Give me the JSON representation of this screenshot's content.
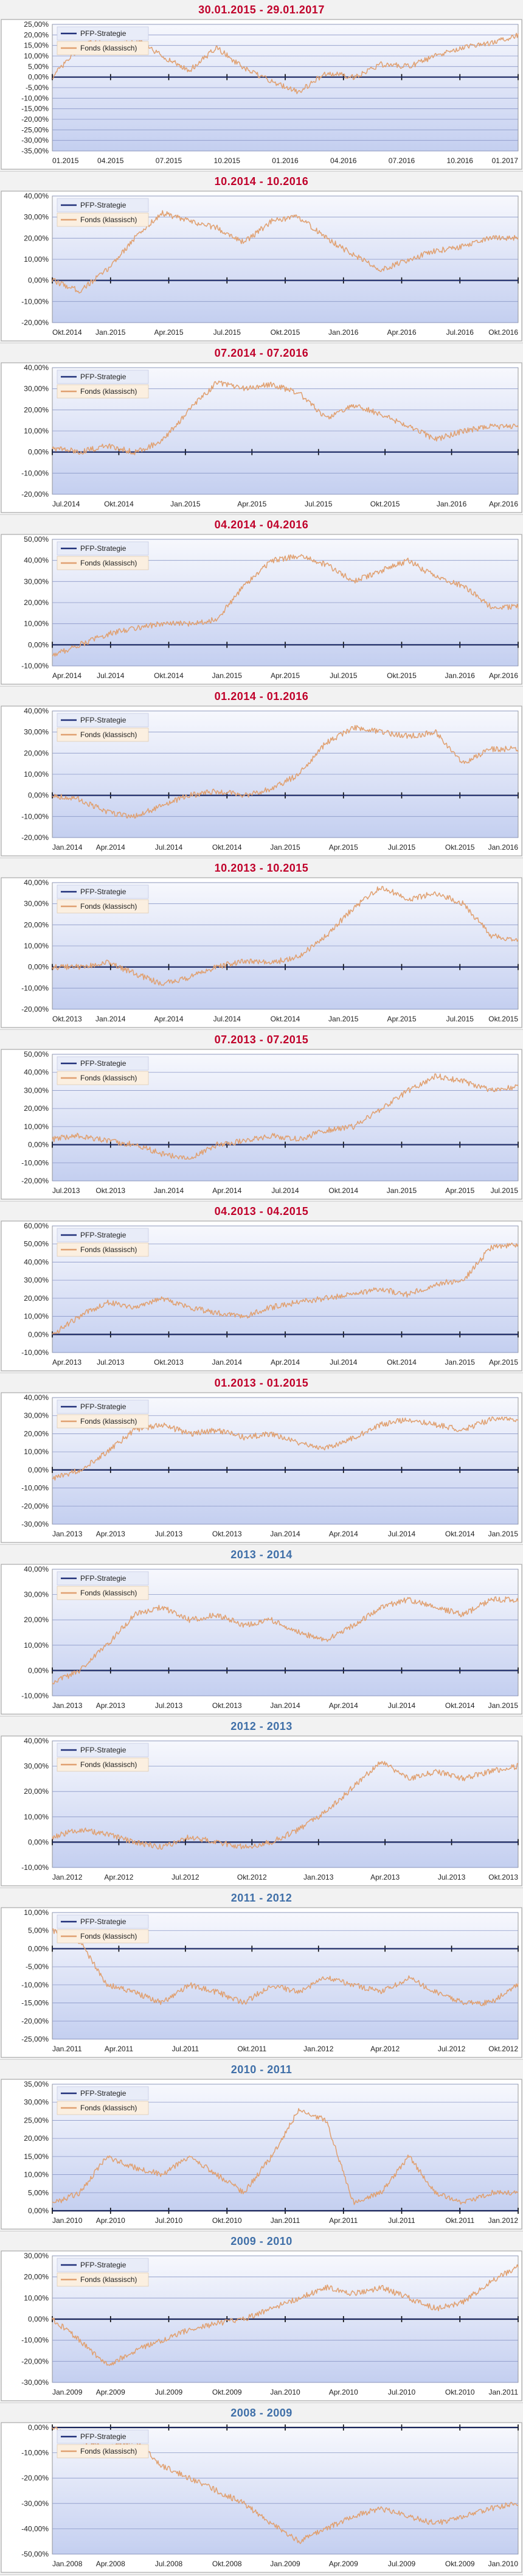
{
  "colors": {
    "title_red": "#c0002a",
    "title_blue": "#3f6fa8",
    "plot_bg_top": "#f7f8fd",
    "plot_bg_bottom": "#c4cff0",
    "gridline": "#8a97c8",
    "zero_axis": "#000000",
    "series_strategy": "#20307a",
    "series_fonds": "#e0a070"
  },
  "chart_data": [
    {
      "type": "line",
      "title": "30.01.2015 - 29.01.2017",
      "title_color": "red",
      "yticks": [
        "25,00%",
        "20,00%",
        "15,00%",
        "10,00%",
        "5,00%",
        "0,00%",
        "-5,00%",
        "-10,00%",
        "-15,00%",
        "-20,00%",
        "-25,00%",
        "-30,00%",
        "-35,00%"
      ],
      "yvalues": [
        25,
        20,
        15,
        10,
        5,
        0,
        -5,
        -10,
        -15,
        -20,
        -25,
        -30,
        -35
      ],
      "ylim": [
        -35,
        25
      ],
      "xticks": [
        "01.2015",
        "04.2015",
        "07.2015",
        "10.2015",
        "01.2016",
        "04.2016",
        "07.2016",
        "10.2016",
        "01.2017"
      ],
      "series": [
        {
          "name": "PFP-Strategie",
          "values": [
            0,
            0,
            0,
            0,
            0,
            0,
            0,
            0,
            0,
            0
          ]
        },
        {
          "name": "Fonds (klassisch)",
          "values": [
            0,
            14,
            20,
            18,
            10,
            3,
            14,
            4,
            -2,
            -7,
            2,
            0,
            6,
            5,
            10,
            14,
            16,
            20
          ]
        }
      ]
    },
    {
      "type": "line",
      "title": "10.2014 - 10.2016",
      "title_color": "red",
      "yticks": [
        "40,00%",
        "30,00%",
        "20,00%",
        "10,00%",
        "0,00%",
        "-10,00%",
        "-20,00%"
      ],
      "yvalues": [
        40,
        30,
        20,
        10,
        0,
        -10,
        -20
      ],
      "ylim": [
        -20,
        40
      ],
      "xticks": [
        "Okt.2014",
        "Jan.2015",
        "Apr.2015",
        "Jul.2015",
        "Okt.2015",
        "Jan.2016",
        "Apr.2016",
        "Jul.2016",
        "Okt.2016"
      ],
      "series": [
        {
          "name": "PFP-Strategie",
          "values": [
            0,
            0,
            0,
            0,
            0,
            0,
            0,
            0,
            0,
            0
          ]
        },
        {
          "name": "Fonds (klassisch)",
          "values": [
            0,
            -5,
            5,
            20,
            32,
            28,
            25,
            18,
            28,
            30,
            20,
            12,
            5,
            10,
            14,
            16,
            20,
            20
          ]
        }
      ]
    },
    {
      "type": "line",
      "title": "07.2014 - 07.2016",
      "title_color": "red",
      "yticks": [
        "40,00%",
        "30,00%",
        "20,00%",
        "10,00%",
        "0,00%",
        "-10,00%",
        "-20,00%"
      ],
      "yvalues": [
        40,
        30,
        20,
        10,
        0,
        -10,
        -20
      ],
      "ylim": [
        -20,
        40
      ],
      "xticks": [
        "Jul.2014",
        "Okt.2014",
        "Jan.2015",
        "Apr.2015",
        "Jul.2015",
        "Okt.2015",
        "Jan.2016",
        "Apr.2016"
      ],
      "series": [
        {
          "name": "PFP-Strategie",
          "values": [
            0,
            0,
            0,
            0,
            0,
            0,
            0,
            0,
            0,
            0
          ]
        },
        {
          "name": "Fonds (klassisch)",
          "values": [
            2,
            0,
            3,
            0,
            5,
            20,
            33,
            30,
            32,
            28,
            16,
            22,
            18,
            12,
            6,
            10,
            12,
            12
          ]
        }
      ]
    },
    {
      "type": "line",
      "title": "04.2014 - 04.2016",
      "title_color": "red",
      "yticks": [
        "50,00%",
        "40,00%",
        "30,00%",
        "20,00%",
        "10,00%",
        "0,00%",
        "-10,00%"
      ],
      "yvalues": [
        50,
        40,
        30,
        20,
        10,
        0,
        -10
      ],
      "ylim": [
        -10,
        50
      ],
      "xticks": [
        "Apr.2014",
        "Jul.2014",
        "Okt.2014",
        "Jan.2015",
        "Apr.2015",
        "Jul.2015",
        "Okt.2015",
        "Jan.2016",
        "Apr.2016"
      ],
      "series": [
        {
          "name": "PFP-Strategie",
          "values": [
            0,
            0,
            0,
            0,
            0,
            0,
            0,
            0,
            0,
            0
          ]
        },
        {
          "name": "Fonds (klassisch)",
          "values": [
            -5,
            0,
            5,
            8,
            10,
            10,
            12,
            28,
            40,
            42,
            38,
            30,
            35,
            40,
            32,
            28,
            18,
            18
          ]
        }
      ]
    },
    {
      "type": "line",
      "title": "01.2014 - 01.2016",
      "title_color": "red",
      "yticks": [
        "40,00%",
        "30,00%",
        "20,00%",
        "10,00%",
        "0,00%",
        "-10,00%",
        "-20,00%"
      ],
      "yvalues": [
        40,
        30,
        20,
        10,
        0,
        -10,
        -20
      ],
      "ylim": [
        -20,
        40
      ],
      "xticks": [
        "Jan.2014",
        "Apr.2014",
        "Jul.2014",
        "Okt.2014",
        "Jan.2015",
        "Apr.2015",
        "Jul.2015",
        "Okt.2015",
        "Jan.2016"
      ],
      "series": [
        {
          "name": "PFP-Strategie",
          "values": [
            0,
            0,
            0,
            0,
            0,
            0,
            0,
            0,
            0,
            0
          ]
        },
        {
          "name": "Fonds (klassisch)",
          "values": [
            0,
            -2,
            -8,
            -10,
            -5,
            0,
            2,
            0,
            3,
            10,
            25,
            32,
            30,
            28,
            30,
            15,
            22,
            22
          ]
        }
      ]
    },
    {
      "type": "line",
      "title": "10.2013 - 10.2015",
      "title_color": "red",
      "yticks": [
        "40,00%",
        "30,00%",
        "20,00%",
        "10,00%",
        "0,00%",
        "-10,00%",
        "-20,00%"
      ],
      "yvalues": [
        40,
        30,
        20,
        10,
        0,
        -10,
        -20
      ],
      "ylim": [
        -20,
        40
      ],
      "xticks": [
        "Okt.2013",
        "Jan.2014",
        "Apr.2014",
        "Jul.2014",
        "Okt.2014",
        "Jan.2015",
        "Apr.2015",
        "Jul.2015",
        "Okt.2015"
      ],
      "series": [
        {
          "name": "PFP-Strategie",
          "values": [
            0,
            0,
            0,
            0,
            0,
            0,
            0,
            0,
            0,
            0
          ]
        },
        {
          "name": "Fonds (klassisch)",
          "values": [
            0,
            0,
            2,
            -3,
            -8,
            -5,
            0,
            3,
            2,
            5,
            15,
            28,
            38,
            32,
            35,
            30,
            15,
            12
          ]
        }
      ]
    },
    {
      "type": "line",
      "title": "07.2013 - 07.2015",
      "title_color": "red",
      "yticks": [
        "50,00%",
        "40,00%",
        "30,00%",
        "20,00%",
        "10,00%",
        "0,00%",
        "-10,00%",
        "-20,00%"
      ],
      "yvalues": [
        50,
        40,
        30,
        20,
        10,
        0,
        -10,
        -20
      ],
      "ylim": [
        -20,
        50
      ],
      "xticks": [
        "Jul.2013",
        "Okt.2013",
        "Jan.2014",
        "Apr.2014",
        "Jul.2014",
        "Okt.2014",
        "Jan.2015",
        "Apr.2015",
        "Jul.2015"
      ],
      "series": [
        {
          "name": "PFP-Strategie",
          "values": [
            0,
            0,
            0,
            0,
            0,
            0,
            0,
            0,
            0,
            0
          ]
        },
        {
          "name": "Fonds (klassisch)",
          "values": [
            3,
            5,
            2,
            0,
            -5,
            -8,
            0,
            2,
            5,
            3,
            8,
            10,
            20,
            30,
            38,
            35,
            30,
            32
          ]
        }
      ]
    },
    {
      "type": "line",
      "title": "04.2013 - 04.2015",
      "title_color": "red",
      "yticks": [
        "60,00%",
        "50,00%",
        "40,00%",
        "30,00%",
        "20,00%",
        "10,00%",
        "0,00%",
        "-10,00%"
      ],
      "yvalues": [
        60,
        50,
        40,
        30,
        20,
        10,
        0,
        -10
      ],
      "ylim": [
        -10,
        60
      ],
      "xticks": [
        "Apr.2013",
        "Jul.2013",
        "Okt.2013",
        "Jan.2014",
        "Apr.2014",
        "Jul.2014",
        "Okt.2014",
        "Jan.2015",
        "Apr.2015"
      ],
      "series": [
        {
          "name": "PFP-Strategie",
          "values": [
            0,
            0,
            0,
            0,
            0,
            0,
            0,
            0,
            0,
            0
          ]
        },
        {
          "name": "Fonds (klassisch)",
          "values": [
            0,
            10,
            18,
            15,
            20,
            15,
            12,
            10,
            15,
            18,
            20,
            22,
            25,
            22,
            28,
            30,
            48,
            50
          ]
        }
      ]
    },
    {
      "type": "line",
      "title": "01.2013 - 01.2015",
      "title_color": "red",
      "yticks": [
        "40,00%",
        "30,00%",
        "20,00%",
        "10,00%",
        "0,00%",
        "-10,00%",
        "-20,00%",
        "-30,00%"
      ],
      "yvalues": [
        40,
        30,
        20,
        10,
        0,
        -10,
        -20,
        -30
      ],
      "ylim": [
        -30,
        40
      ],
      "xticks": [
        "Jan.2013",
        "Apr.2013",
        "Jul.2013",
        "Okt.2013",
        "Jan.2014",
        "Apr.2014",
        "Jul.2014",
        "Okt.2014",
        "Jan.2015"
      ],
      "series": [
        {
          "name": "PFP-Strategie",
          "values": [
            0,
            0,
            0,
            0,
            0,
            0,
            0,
            0,
            0,
            0
          ]
        },
        {
          "name": "Fonds (klassisch)",
          "values": [
            -5,
            0,
            10,
            22,
            25,
            20,
            22,
            18,
            20,
            15,
            12,
            18,
            25,
            28,
            25,
            22,
            28,
            28
          ]
        }
      ]
    },
    {
      "type": "line",
      "title": "2013 - 2014",
      "title_color": "blue",
      "yticks": [
        "40,00%",
        "30,00%",
        "20,00%",
        "10,00%",
        "0,00%",
        "-10,00%"
      ],
      "yvalues": [
        40,
        30,
        20,
        10,
        0,
        -10
      ],
      "ylim": [
        -10,
        40
      ],
      "xticks": [
        "Jan.2013",
        "Apr.2013",
        "Jul.2013",
        "Okt.2013",
        "Jan.2014",
        "Apr.2014",
        "Jul.2014",
        "Okt.2014",
        "Jan.2015"
      ],
      "series": [
        {
          "name": "PFP-Strategie",
          "values": [
            0,
            0,
            0,
            0,
            0,
            0,
            0,
            0,
            0,
            0
          ]
        },
        {
          "name": "Fonds (klassisch)",
          "values": [
            -5,
            0,
            10,
            22,
            25,
            20,
            22,
            18,
            20,
            15,
            12,
            18,
            25,
            28,
            25,
            22,
            28,
            28
          ]
        }
      ]
    },
    {
      "type": "line",
      "title": "2012 - 2013",
      "title_color": "blue",
      "yticks": [
        "40,00%",
        "30,00%",
        "20,00%",
        "10,00%",
        "0,00%",
        "-10,00%"
      ],
      "yvalues": [
        40,
        30,
        20,
        10,
        0,
        -10
      ],
      "ylim": [
        -10,
        40
      ],
      "xticks": [
        "Jan.2012",
        "Apr.2012",
        "Jul.2012",
        "Okt.2012",
        "Jan.2013",
        "Apr.2013",
        "Jul.2013",
        "Okt.2013"
      ],
      "series": [
        {
          "name": "PFP-Strategie",
          "values": [
            0,
            0,
            0,
            0,
            0,
            0,
            0,
            0,
            0,
            0
          ]
        },
        {
          "name": "Fonds (klassisch)",
          "values": [
            2,
            5,
            3,
            0,
            -2,
            2,
            0,
            -2,
            0,
            5,
            12,
            22,
            32,
            25,
            28,
            25,
            28,
            30
          ]
        }
      ]
    },
    {
      "type": "line",
      "title": "2011 - 2012",
      "title_color": "blue",
      "yticks": [
        "10,00%",
        "5,00%",
        "0,00%",
        "-5,00%",
        "-10,00%",
        "-15,00%",
        "-20,00%",
        "-25,00%"
      ],
      "yvalues": [
        10,
        5,
        0,
        -5,
        -10,
        -15,
        -20,
        -25
      ],
      "ylim": [
        -25,
        10
      ],
      "xticks": [
        "Jan.2011",
        "Apr.2011",
        "Jul.2011",
        "Okt.2011",
        "Jan.2012",
        "Apr.2012",
        "Jul.2012",
        "Okt.2012"
      ],
      "series": [
        {
          "name": "PFP-Strategie",
          "values": [
            0,
            0,
            0,
            0,
            0,
            0,
            0,
            0,
            0,
            0
          ]
        },
        {
          "name": "Fonds (klassisch)",
          "values": [
            5,
            2,
            -10,
            -12,
            -15,
            -10,
            -12,
            -15,
            -10,
            -12,
            -8,
            -10,
            -12,
            -8,
            -12,
            -15,
            -15,
            -10
          ]
        }
      ]
    },
    {
      "type": "line",
      "title": "2010 - 2011",
      "title_color": "blue",
      "yticks": [
        "35,00%",
        "30,00%",
        "25,00%",
        "20,00%",
        "15,00%",
        "10,00%",
        "5,00%",
        "0,00%"
      ],
      "yvalues": [
        35,
        30,
        25,
        20,
        15,
        10,
        5,
        0
      ],
      "ylim": [
        0,
        35
      ],
      "xticks": [
        "Jan.2010",
        "Apr.2010",
        "Jul.2010",
        "Okt.2010",
        "Jan.2011",
        "Apr.2011",
        "Jul.2011",
        "Okt.2011",
        "Jan.2012"
      ],
      "series": [
        {
          "name": "PFP-Strategie",
          "values": [
            0,
            0,
            0,
            0,
            0,
            0,
            0,
            0,
            0,
            0
          ]
        },
        {
          "name": "Fonds (klassisch)",
          "values": [
            2,
            5,
            15,
            12,
            10,
            15,
            10,
            5,
            15,
            28,
            25,
            2,
            5,
            15,
            5,
            2,
            5,
            5
          ]
        }
      ]
    },
    {
      "type": "line",
      "title": "2009 - 2010",
      "title_color": "blue",
      "yticks": [
        "30,00%",
        "20,00%",
        "10,00%",
        "0,00%",
        "-10,00%",
        "-20,00%",
        "-30,00%"
      ],
      "yvalues": [
        30,
        20,
        10,
        0,
        -10,
        -20,
        -30
      ],
      "ylim": [
        -30,
        30
      ],
      "xticks": [
        "Jan.2009",
        "Apr.2009",
        "Jul.2009",
        "Okt.2009",
        "Jan.2010",
        "Apr.2010",
        "Jul.2010",
        "Okt.2010",
        "Jan.2011"
      ],
      "series": [
        {
          "name": "PFP-Strategie",
          "values": [
            0,
            0,
            0,
            0,
            0,
            0,
            0,
            0,
            0,
            0
          ]
        },
        {
          "name": "Fonds (klassisch)",
          "values": [
            0,
            -10,
            -22,
            -15,
            -10,
            -5,
            -2,
            0,
            5,
            10,
            15,
            12,
            15,
            10,
            5,
            8,
            18,
            25
          ]
        }
      ]
    },
    {
      "type": "line",
      "title": "2008 - 2009",
      "title_color": "blue",
      "yticks": [
        "0,00%",
        "-10,00%",
        "-20,00%",
        "-30,00%",
        "-40,00%",
        "-50,00%"
      ],
      "yvalues": [
        0,
        -10,
        -20,
        -30,
        -40,
        -50
      ],
      "ylim": [
        -50,
        0
      ],
      "xticks": [
        "Jan.2008",
        "Apr.2008",
        "Jul.2008",
        "Okt.2008",
        "Jan.2009",
        "Apr.2009",
        "Jul.2009",
        "Okt.2009",
        "Jan.2010"
      ],
      "series": [
        {
          "name": "PFP-Strategie",
          "values": [
            0,
            0,
            0,
            0,
            0,
            0,
            0,
            0,
            0,
            0
          ]
        },
        {
          "name": "Fonds (klassisch)",
          "values": [
            0,
            -5,
            -8,
            -5,
            -15,
            -20,
            -25,
            -30,
            -38,
            -45,
            -40,
            -35,
            -32,
            -35,
            -38,
            -35,
            -32,
            -30
          ]
        }
      ]
    }
  ]
}
